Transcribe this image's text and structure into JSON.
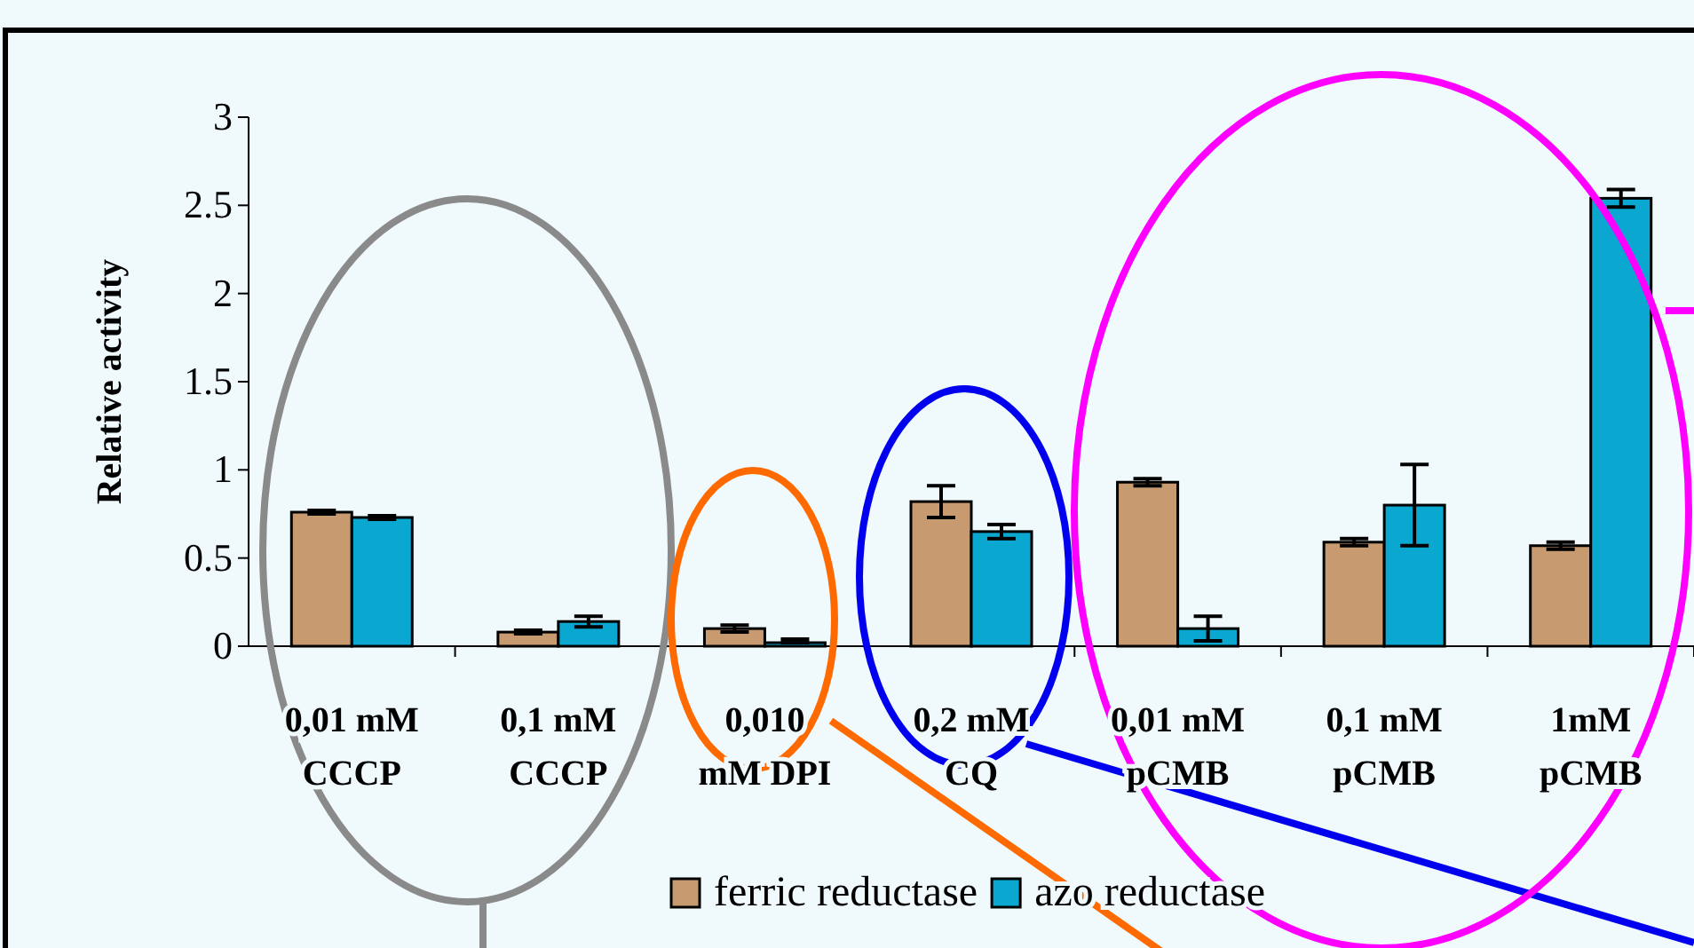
{
  "chart_data": {
    "type": "bar",
    "ylabel": "Relative activity",
    "categories": [
      "0,01 mM\nCCCP",
      "0,1 mM\nCCCP",
      "0,010\nmM DPI",
      "0,2 mM\nCQ",
      "0,01 mM\npCMB",
      "0,1 mM\npCMB",
      "1mM\npCMB"
    ],
    "series": [
      {
        "name": "ferric reductase",
        "color": "#c89a70",
        "values": [
          0.76,
          0.08,
          0.1,
          0.82,
          0.93,
          0.59,
          0.57
        ],
        "errors": [
          0.01,
          0.01,
          0.02,
          0.09,
          0.02,
          0.02,
          0.02
        ]
      },
      {
        "name": "azo reductase",
        "color": "#0aa8d0",
        "values": [
          0.73,
          0.14,
          0.02,
          0.65,
          0.1,
          0.8,
          2.54
        ],
        "errors": [
          0.01,
          0.03,
          [
            0.02,
            0.04
          ],
          0.04,
          0.07,
          0.23,
          0.05
        ]
      }
    ],
    "ylim": [
      0,
      3
    ],
    "yticks": [
      0,
      0.5,
      1,
      1.5,
      2,
      2.5,
      3
    ],
    "grid": false,
    "legend": "bottom"
  }
}
